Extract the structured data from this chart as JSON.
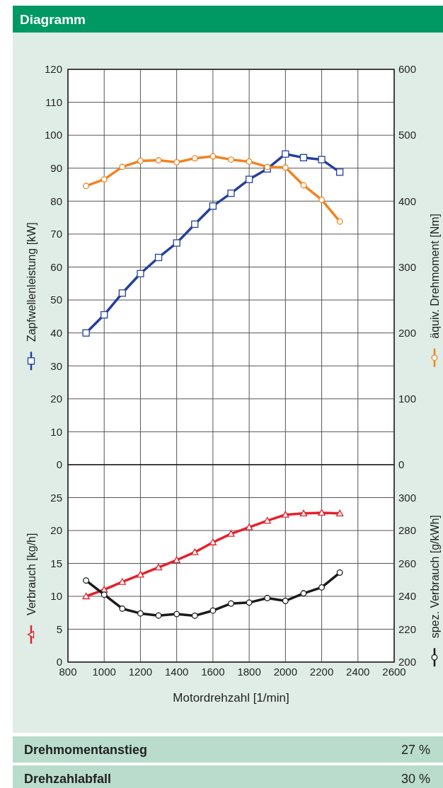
{
  "chart_data": [
    {
      "type": "line",
      "title": "Diagramm",
      "ylabel": "Zapfwellenleistung [kW]",
      "y2label": "äquiv. Drehmoment [Nm]",
      "x": [
        900,
        1000,
        1100,
        1200,
        1300,
        1400,
        1500,
        1600,
        1700,
        1800,
        1900,
        2000,
        2100,
        2200,
        2300
      ],
      "xlim": [
        800,
        2600
      ],
      "xticks": [
        800,
        1000,
        1200,
        1400,
        1600,
        1800,
        2000,
        2200,
        2400,
        2600
      ],
      "ylim": [
        0,
        120
      ],
      "yticks": [
        0,
        10,
        20,
        30,
        40,
        50,
        60,
        70,
        80,
        90,
        100,
        110,
        120
      ],
      "y2lim": [
        0,
        600
      ],
      "y2ticks": [
        0,
        100,
        200,
        300,
        400,
        500,
        600
      ],
      "grid": true,
      "tick_labels": "y",
      "series": [
        {
          "color": "#233f9b",
          "marker": "square",
          "values": [
            40.0,
            45.5,
            52.1,
            58.0,
            62.9,
            67.3,
            73.0,
            78.5,
            82.4,
            86.6,
            89.8,
            94.3,
            93.2,
            92.6,
            88.8
          ]
        },
        {
          "color": "#f2821f",
          "marker": "circle",
          "axis": "y2",
          "values": [
            423,
            433,
            452,
            461,
            462,
            459,
            465,
            468,
            463,
            460,
            452,
            451,
            424,
            402,
            369
          ]
        }
      ]
    },
    {
      "type": "line",
      "xlabel": "Motordrehzahl [1/min]",
      "ylabel": "Verbrauch [kg/h]",
      "y2label": "spez. Verbrauch [g/kWh]",
      "x": [
        900,
        1000,
        1100,
        1200,
        1300,
        1400,
        1500,
        1600,
        1700,
        1800,
        1900,
        2000,
        2100,
        2200,
        2300
      ],
      "xlim": [
        800,
        2600
      ],
      "xticks": [
        800,
        1000,
        1200,
        1400,
        1600,
        1800,
        2000,
        2200,
        2400,
        2600
      ],
      "ylim": [
        0,
        30
      ],
      "yticks": [
        0,
        5,
        10,
        15,
        20,
        25
      ],
      "y2lim": [
        200,
        320
      ],
      "y2ticks": [
        200,
        220,
        240,
        260,
        280,
        300
      ],
      "grid": true,
      "series": [
        {
          "color": "#e4202b",
          "marker": "triangle",
          "values": [
            10.0,
            11.0,
            12.2,
            13.3,
            14.4,
            15.5,
            16.7,
            18.2,
            19.5,
            20.5,
            21.5,
            22.4,
            22.6,
            22.7,
            22.6
          ]
        },
        {
          "color": "#1a1a1a",
          "marker": "circle",
          "axis": "y2",
          "values": [
            249.6,
            241,
            232.5,
            229.6,
            228.3,
            229.2,
            228.2,
            231.3,
            235.6,
            236.2,
            238.9,
            237.2,
            241.8,
            245.4,
            254.4
          ]
        }
      ],
      "annotations": [
        "Drehmomentanstieg",
        "27 %",
        "Drehzahlabfall",
        "30 %"
      ]
    }
  ]
}
